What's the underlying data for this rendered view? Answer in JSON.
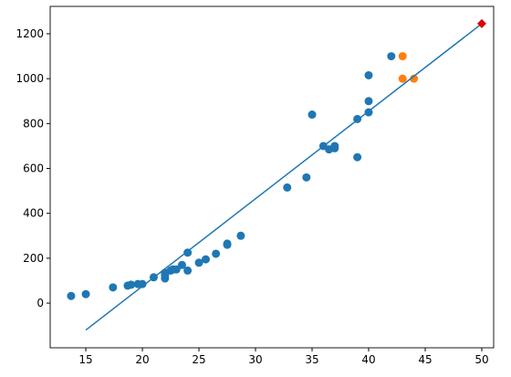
{
  "chart_data": {
    "type": "scatter",
    "xlim": [
      11.85,
      51.05
    ],
    "ylim": [
      -199,
      1322
    ],
    "xticks": [
      15,
      20,
      25,
      30,
      35,
      40,
      45,
      50
    ],
    "yticks": [
      0,
      200,
      400,
      600,
      800,
      1000,
      1200
    ],
    "grid": false,
    "series": [
      {
        "mode": "markers",
        "marker": "circle",
        "color": "#1f77b4",
        "x": [
          13.7,
          15,
          17.4,
          18.7,
          19,
          19.6,
          20,
          21,
          22,
          22,
          22,
          22.5,
          22.7,
          23,
          23.5,
          24,
          24,
          25,
          25.6,
          26.5,
          27.5,
          27.5,
          28.7,
          32.8,
          34.5,
          35,
          36,
          36.5,
          37,
          37,
          39,
          39,
          40,
          40,
          40,
          42
        ],
        "values": [
          32,
          40,
          70,
          78,
          82,
          85,
          85,
          115,
          110,
          125,
          135,
          145,
          150,
          150,
          170,
          225,
          145,
          180,
          195,
          220,
          260,
          265,
          300,
          515,
          560,
          840,
          700,
          685,
          690,
          700,
          650,
          820,
          850,
          900,
          1015,
          1100
        ]
      },
      {
        "mode": "markers",
        "marker": "circle",
        "color": "#ff7f0e",
        "x": [
          43,
          43,
          44
        ],
        "values": [
          1100,
          1000,
          1000
        ]
      },
      {
        "mode": "line",
        "color": "#1f77b4",
        "x": [
          15,
          50
        ],
        "values": [
          -120,
          1245
        ]
      },
      {
        "mode": "markers",
        "marker": "diamond",
        "color": "#e00000",
        "x": [
          50
        ],
        "values": [
          1245
        ]
      }
    ]
  }
}
